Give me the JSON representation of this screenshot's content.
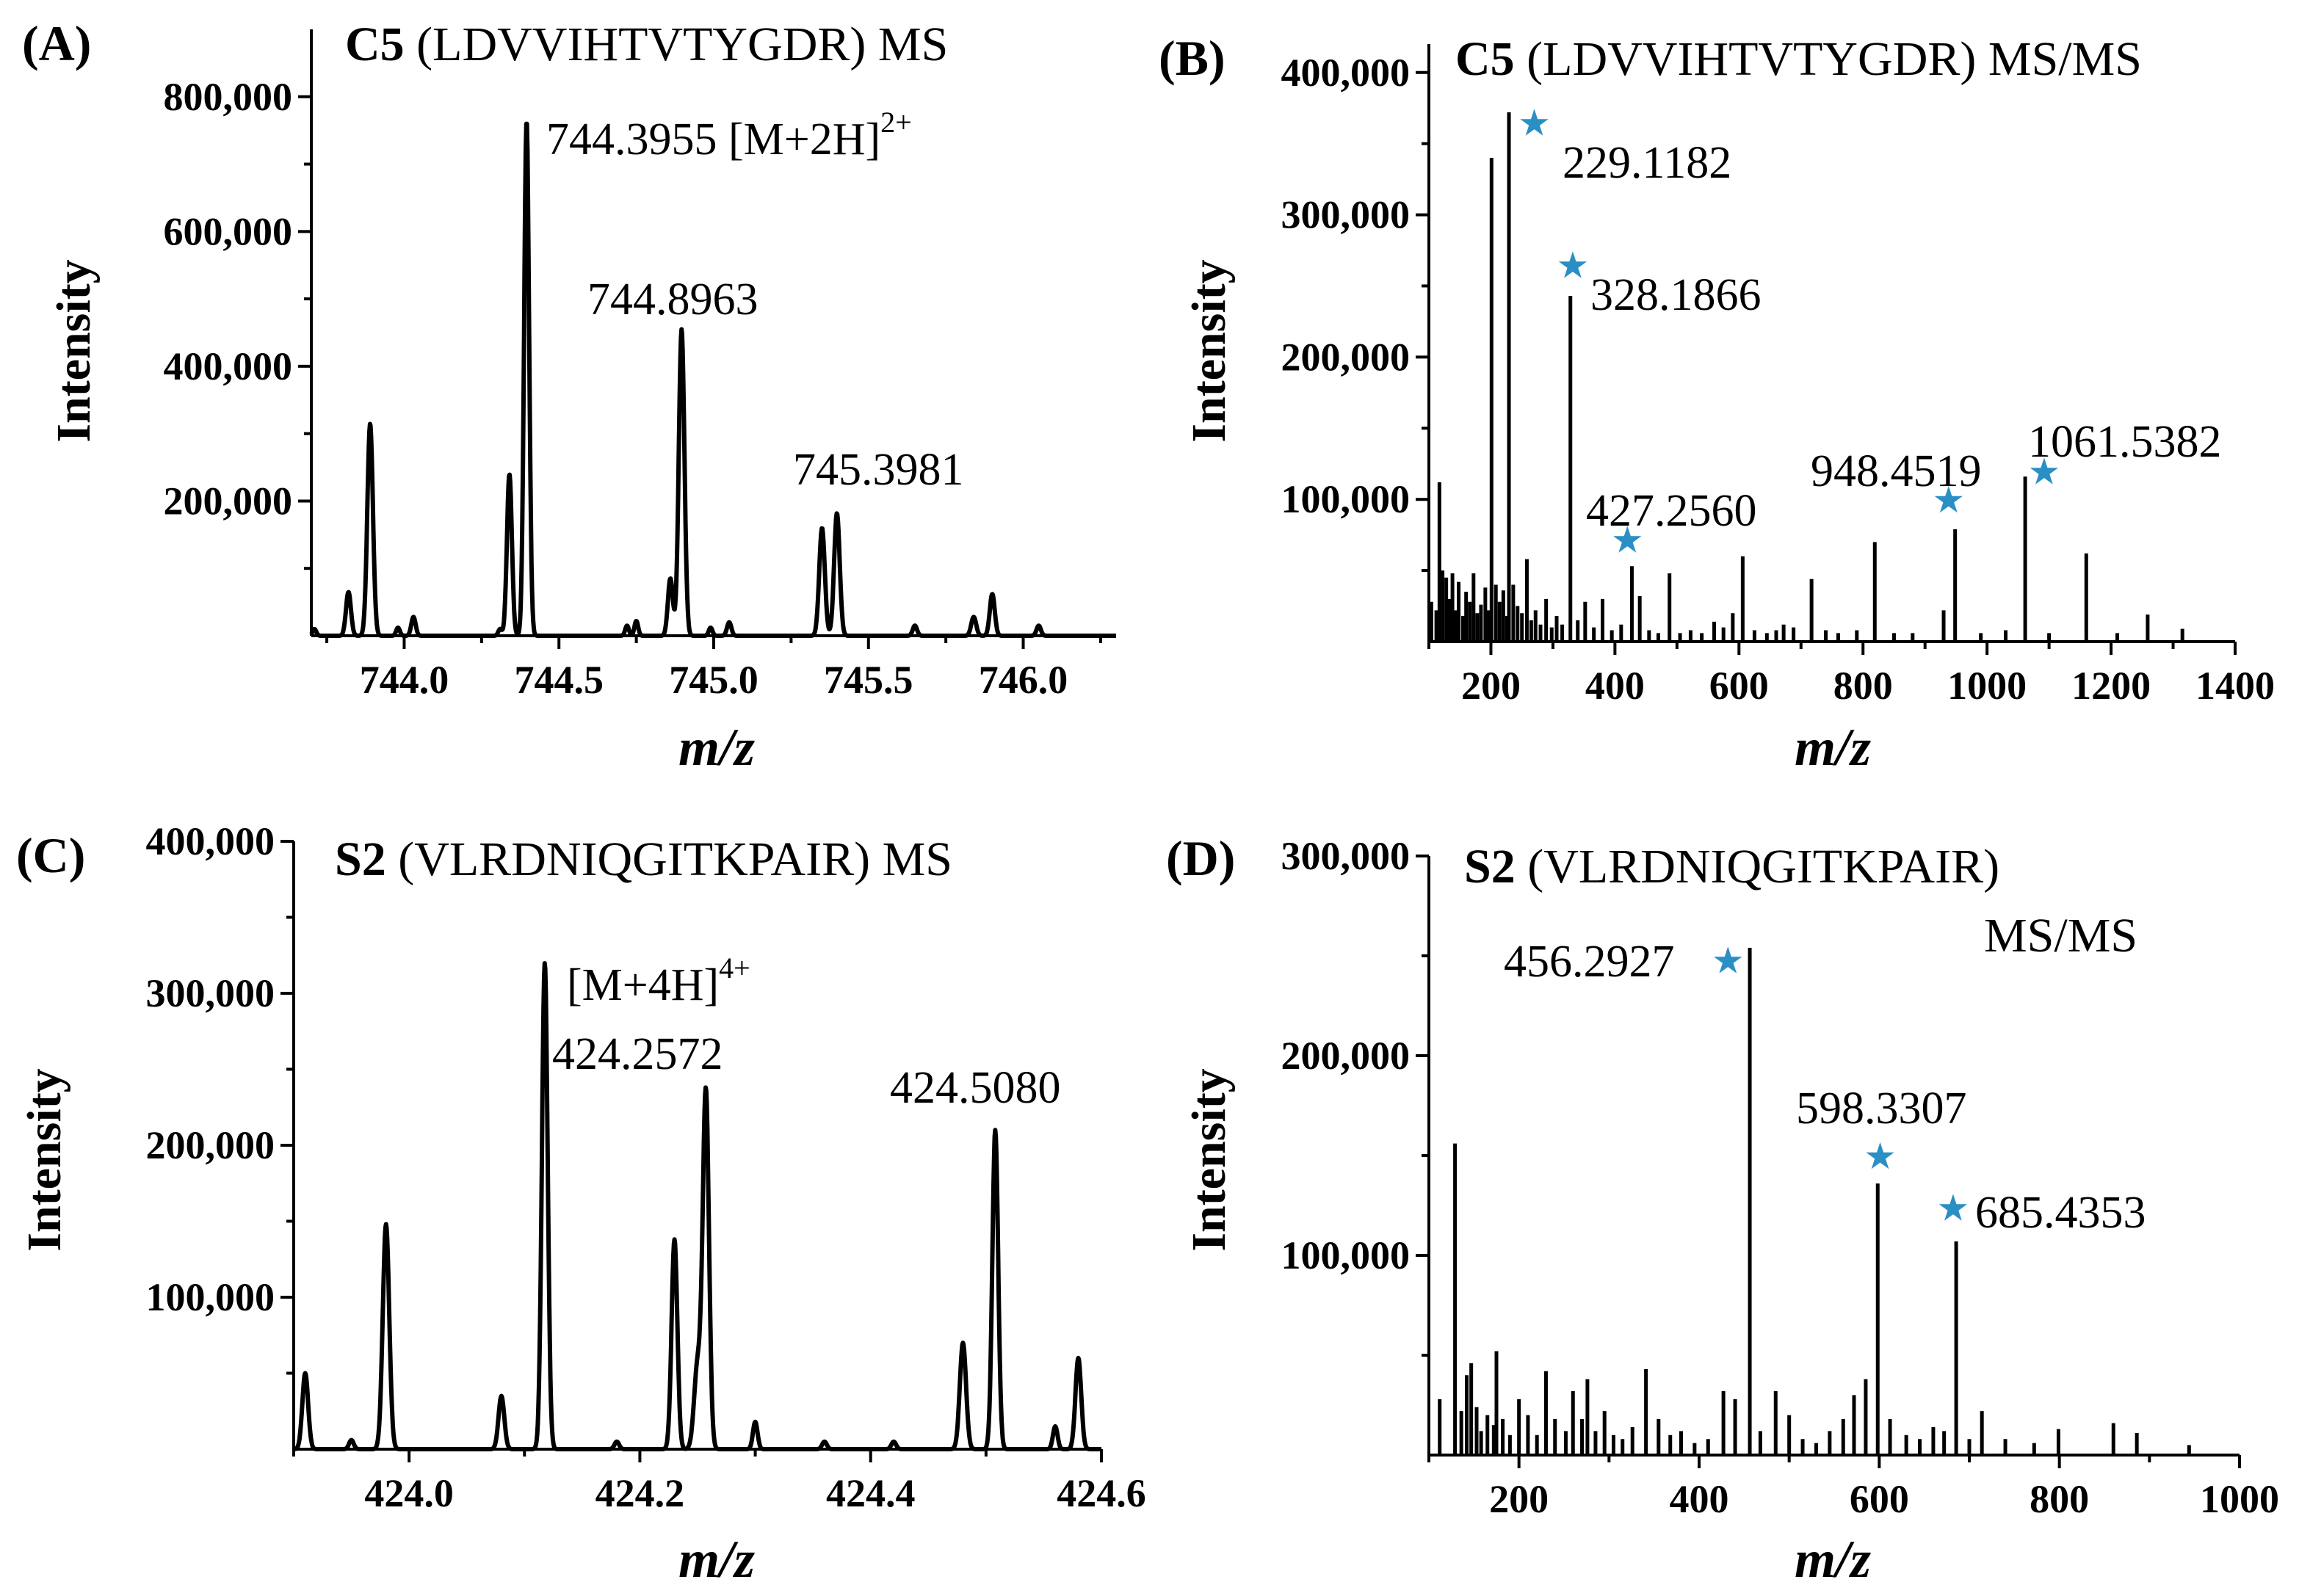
{
  "chart_data": [
    {
      "id": "A",
      "panel_label": "(A)",
      "type": "line",
      "title_bold": "C5",
      "title_rest": "(LDVVIHTVTYGDR) MS",
      "title_line2": "",
      "xlabel": "m/z",
      "ylabel": "Intensity",
      "xlim": [
        743.7,
        746.3
      ],
      "ylim": [
        0,
        900000
      ],
      "xticks": [
        744.0,
        744.5,
        745.0,
        745.5,
        746.0
      ],
      "xtick_labels": [
        "744.0",
        "744.5",
        "745.0",
        "745.5",
        "746.0"
      ],
      "xtick_minor": [
        743.75,
        744.25,
        744.75,
        745.25,
        745.75,
        746.25
      ],
      "yticks": [
        200000,
        400000,
        600000,
        800000
      ],
      "ytick_labels": [
        "200,000",
        "400,000",
        "600,000",
        "800,000"
      ],
      "peaks": [
        {
          "x": 743.71,
          "y": 10000,
          "w": 0.006
        },
        {
          "x": 743.82,
          "y": 65000,
          "w": 0.008
        },
        {
          "x": 743.89,
          "y": 315000,
          "w": 0.009
        },
        {
          "x": 743.98,
          "y": 12000,
          "w": 0.006
        },
        {
          "x": 744.03,
          "y": 28000,
          "w": 0.007
        },
        {
          "x": 744.31,
          "y": 10000,
          "w": 0.006
        },
        {
          "x": 744.34,
          "y": 240000,
          "w": 0.008
        },
        {
          "x": 744.3955,
          "y": 765000,
          "w": 0.008
        },
        {
          "x": 744.72,
          "y": 15000,
          "w": 0.006
        },
        {
          "x": 744.75,
          "y": 22000,
          "w": 0.006
        },
        {
          "x": 744.86,
          "y": 85000,
          "w": 0.008
        },
        {
          "x": 744.8963,
          "y": 455000,
          "w": 0.009
        },
        {
          "x": 744.99,
          "y": 12000,
          "w": 0.006
        },
        {
          "x": 745.05,
          "y": 20000,
          "w": 0.007
        },
        {
          "x": 745.35,
          "y": 160000,
          "w": 0.009
        },
        {
          "x": 745.3981,
          "y": 182000,
          "w": 0.009
        },
        {
          "x": 745.65,
          "y": 15000,
          "w": 0.007
        },
        {
          "x": 745.84,
          "y": 28000,
          "w": 0.008
        },
        {
          "x": 745.9,
          "y": 62000,
          "w": 0.008
        },
        {
          "x": 746.05,
          "y": 15000,
          "w": 0.007
        }
      ],
      "labels": [
        {
          "text": "744.3955 [M+2H]",
          "sup": "2+",
          "x": 744.3955,
          "y": 765000
        },
        {
          "text": "744.8963",
          "sup": "",
          "x": 744.8963,
          "y": 455000
        },
        {
          "text": "745.3981",
          "sup": "",
          "x": 745.3981,
          "y": 182000
        }
      ],
      "stars": []
    },
    {
      "id": "B",
      "panel_label": "(B)",
      "type": "bar",
      "title_bold": "C5",
      "title_rest": "(LDVVIHTVTYGDR) MS/MS",
      "title_line2": "",
      "xlabel": "m/z",
      "ylabel": "Intensity",
      "xlim": [
        100,
        1400
      ],
      "ylim": [
        0,
        420000
      ],
      "xticks": [
        200,
        400,
        600,
        800,
        1000,
        1200,
        1400
      ],
      "xtick_labels": [
        "200",
        "400",
        "600",
        "800",
        "1000",
        "1200",
        "1400"
      ],
      "xtick_minor": [
        100,
        300,
        500,
        700,
        900,
        1100,
        1300
      ],
      "yticks": [
        100000,
        200000,
        300000,
        400000
      ],
      "ytick_labels": [
        "100,000",
        "200,000",
        "300,000",
        "400,000"
      ],
      "peaks": [
        {
          "x": 104,
          "y": 28000
        },
        {
          "x": 112,
          "y": 22000
        },
        {
          "x": 117,
          "y": 112000
        },
        {
          "x": 122,
          "y": 50000
        },
        {
          "x": 128,
          "y": 45000
        },
        {
          "x": 133,
          "y": 30000
        },
        {
          "x": 138,
          "y": 48000
        },
        {
          "x": 143,
          "y": 22000
        },
        {
          "x": 148,
          "y": 42000
        },
        {
          "x": 155,
          "y": 18000
        },
        {
          "x": 160,
          "y": 35000
        },
        {
          "x": 166,
          "y": 28000
        },
        {
          "x": 172,
          "y": 48000
        },
        {
          "x": 178,
          "y": 20000
        },
        {
          "x": 184,
          "y": 26000
        },
        {
          "x": 191,
          "y": 38000
        },
        {
          "x": 196,
          "y": 22000
        },
        {
          "x": 201,
          "y": 340000
        },
        {
          "x": 208,
          "y": 40000
        },
        {
          "x": 214,
          "y": 28000
        },
        {
          "x": 220,
          "y": 36000
        },
        {
          "x": 226,
          "y": 18000
        },
        {
          "x": 229.1,
          "y": 372000
        },
        {
          "x": 236,
          "y": 40000
        },
        {
          "x": 243,
          "y": 25000
        },
        {
          "x": 250,
          "y": 20000
        },
        {
          "x": 258,
          "y": 58000
        },
        {
          "x": 265,
          "y": 15000
        },
        {
          "x": 272,
          "y": 22000
        },
        {
          "x": 280,
          "y": 12000
        },
        {
          "x": 289,
          "y": 30000
        },
        {
          "x": 298,
          "y": 10000
        },
        {
          "x": 306,
          "y": 18000
        },
        {
          "x": 315,
          "y": 12000
        },
        {
          "x": 328.2,
          "y": 243000
        },
        {
          "x": 340,
          "y": 15000
        },
        {
          "x": 352,
          "y": 28000
        },
        {
          "x": 366,
          "y": 10000
        },
        {
          "x": 380,
          "y": 30000
        },
        {
          "x": 395,
          "y": 8000
        },
        {
          "x": 410,
          "y": 12000
        },
        {
          "x": 427.3,
          "y": 53000
        },
        {
          "x": 440,
          "y": 32000
        },
        {
          "x": 455,
          "y": 8000
        },
        {
          "x": 470,
          "y": 6000
        },
        {
          "x": 488,
          "y": 48000
        },
        {
          "x": 505,
          "y": 6000
        },
        {
          "x": 522,
          "y": 8000
        },
        {
          "x": 540,
          "y": 6000
        },
        {
          "x": 560,
          "y": 14000
        },
        {
          "x": 575,
          "y": 10000
        },
        {
          "x": 590,
          "y": 20000
        },
        {
          "x": 606,
          "y": 60000
        },
        {
          "x": 625,
          "y": 8000
        },
        {
          "x": 645,
          "y": 6000
        },
        {
          "x": 660,
          "y": 8000
        },
        {
          "x": 672,
          "y": 12000
        },
        {
          "x": 688,
          "y": 10000
        },
        {
          "x": 717,
          "y": 44000
        },
        {
          "x": 740,
          "y": 8000
        },
        {
          "x": 760,
          "y": 6000
        },
        {
          "x": 790,
          "y": 8000
        },
        {
          "x": 819,
          "y": 70000
        },
        {
          "x": 850,
          "y": 6000
        },
        {
          "x": 880,
          "y": 6000
        },
        {
          "x": 930,
          "y": 22000
        },
        {
          "x": 948.5,
          "y": 79000
        },
        {
          "x": 990,
          "y": 6000
        },
        {
          "x": 1030,
          "y": 8000
        },
        {
          "x": 1061.5,
          "y": 116000
        },
        {
          "x": 1100,
          "y": 6000
        },
        {
          "x": 1160,
          "y": 62000
        },
        {
          "x": 1210,
          "y": 6000
        },
        {
          "x": 1259,
          "y": 19000
        },
        {
          "x": 1315,
          "y": 9000
        }
      ],
      "labels": [
        {
          "text": "229.1182",
          "sup": "",
          "x": 229.1,
          "y": 372000
        },
        {
          "text": "328.1866",
          "sup": "",
          "x": 328.2,
          "y": 243000
        },
        {
          "text": "427.2560",
          "sup": "",
          "x": 427.3,
          "y": 53000
        },
        {
          "text": "948.4519",
          "sup": "",
          "x": 948.5,
          "y": 79000
        },
        {
          "text": "1061.5382",
          "sup": "",
          "x": 1061.5,
          "y": 116000
        }
      ],
      "stars": [
        {
          "x": 270,
          "y": 365000
        },
        {
          "x": 332,
          "y": 265000
        },
        {
          "x": 420,
          "y": 72000
        },
        {
          "x": 938,
          "y": 100000
        },
        {
          "x": 1092,
          "y": 120000
        }
      ]
    },
    {
      "id": "C",
      "panel_label": "(C)",
      "type": "line",
      "title_bold": "S2",
      "title_rest": "(VLRDNIQGITKPAIR) MS",
      "title_line2": "",
      "xlabel": "m/z",
      "ylabel": "Intensity",
      "xlim": [
        423.9,
        424.6
      ],
      "ylim": [
        0,
        400000
      ],
      "xticks": [
        424.0,
        424.2,
        424.4,
        424.6
      ],
      "xtick_labels": [
        "424.0",
        "424.2",
        "424.4",
        "424.6"
      ],
      "xtick_minor": [
        423.9,
        424.1,
        424.3,
        424.5
      ],
      "yticks": [
        100000,
        200000,
        300000,
        400000
      ],
      "ytick_labels": [
        "100,000",
        "200,000",
        "300,000",
        "400,000"
      ],
      "peaks": [
        {
          "x": 423.91,
          "y": 50000,
          "w": 0.0025
        },
        {
          "x": 423.95,
          "y": 6000,
          "w": 0.002
        },
        {
          "x": 423.98,
          "y": 148000,
          "w": 0.0028
        },
        {
          "x": 424.08,
          "y": 35000,
          "w": 0.0025
        },
        {
          "x": 424.1176,
          "y": 320000,
          "w": 0.0025
        },
        {
          "x": 424.18,
          "y": 5000,
          "w": 0.002
        },
        {
          "x": 424.23,
          "y": 138000,
          "w": 0.0025
        },
        {
          "x": 424.25,
          "y": 55000,
          "w": 0.003
        },
        {
          "x": 424.2572,
          "y": 235000,
          "w": 0.0027
        },
        {
          "x": 424.3,
          "y": 18000,
          "w": 0.002
        },
        {
          "x": 424.36,
          "y": 5000,
          "w": 0.002
        },
        {
          "x": 424.42,
          "y": 5000,
          "w": 0.002
        },
        {
          "x": 424.48,
          "y": 70000,
          "w": 0.0027
        },
        {
          "x": 424.508,
          "y": 210000,
          "w": 0.0025
        },
        {
          "x": 424.56,
          "y": 15000,
          "w": 0.002
        },
        {
          "x": 424.58,
          "y": 60000,
          "w": 0.0025
        }
      ],
      "labels": [
        {
          "text": "[M+4H]",
          "sup": "4+",
          "x": 424.1176,
          "y": 320000
        },
        {
          "text": "424.2572",
          "sup": "",
          "x": 424.1176,
          "y": 320000
        },
        {
          "text": "424.5080",
          "sup": "",
          "x": 424.508,
          "y": 210000
        }
      ],
      "stars": []
    },
    {
      "id": "D",
      "panel_label": "(D)",
      "type": "bar",
      "title_bold": "S2",
      "title_rest": "(VLRDNIQGITKPAIR)",
      "title_line2": "MS/MS",
      "xlabel": "m/z",
      "ylabel": "Intensity",
      "xlim": [
        100,
        1000
      ],
      "ylim": [
        0,
        300000
      ],
      "xticks": [
        200,
        400,
        600,
        800,
        1000
      ],
      "xtick_labels": [
        "200",
        "400",
        "600",
        "800",
        "1000"
      ],
      "xtick_minor": [
        100,
        300,
        500,
        700,
        900
      ],
      "yticks": [
        100000,
        200000,
        300000
      ],
      "ytick_labels": [
        "100,000",
        "200,000",
        "300,000"
      ],
      "peaks": [
        {
          "x": 112,
          "y": 28000
        },
        {
          "x": 129,
          "y": 156000
        },
        {
          "x": 136,
          "y": 22000
        },
        {
          "x": 142,
          "y": 40000
        },
        {
          "x": 147,
          "y": 46000
        },
        {
          "x": 153,
          "y": 24000
        },
        {
          "x": 158,
          "y": 12000
        },
        {
          "x": 165,
          "y": 20000
        },
        {
          "x": 172,
          "y": 15000
        },
        {
          "x": 175,
          "y": 52000
        },
        {
          "x": 182,
          "y": 18000
        },
        {
          "x": 190,
          "y": 10000
        },
        {
          "x": 200,
          "y": 28000
        },
        {
          "x": 210,
          "y": 20000
        },
        {
          "x": 220,
          "y": 10000
        },
        {
          "x": 230,
          "y": 42000
        },
        {
          "x": 240,
          "y": 18000
        },
        {
          "x": 252,
          "y": 12000
        },
        {
          "x": 260,
          "y": 32000
        },
        {
          "x": 270,
          "y": 18000
        },
        {
          "x": 276,
          "y": 38000
        },
        {
          "x": 285,
          "y": 12000
        },
        {
          "x": 295,
          "y": 22000
        },
        {
          "x": 305,
          "y": 10000
        },
        {
          "x": 315,
          "y": 8000
        },
        {
          "x": 326,
          "y": 14000
        },
        {
          "x": 341,
          "y": 43000
        },
        {
          "x": 355,
          "y": 18000
        },
        {
          "x": 368,
          "y": 10000
        },
        {
          "x": 380,
          "y": 12000
        },
        {
          "x": 395,
          "y": 6000
        },
        {
          "x": 410,
          "y": 8000
        },
        {
          "x": 427,
          "y": 32000
        },
        {
          "x": 440,
          "y": 28000
        },
        {
          "x": 456.3,
          "y": 254000
        },
        {
          "x": 468,
          "y": 12000
        },
        {
          "x": 485,
          "y": 32000
        },
        {
          "x": 500,
          "y": 20000
        },
        {
          "x": 515,
          "y": 8000
        },
        {
          "x": 530,
          "y": 6000
        },
        {
          "x": 545,
          "y": 12000
        },
        {
          "x": 560,
          "y": 18000
        },
        {
          "x": 572,
          "y": 30000
        },
        {
          "x": 585,
          "y": 38000
        },
        {
          "x": 598.3,
          "y": 136000
        },
        {
          "x": 612,
          "y": 18000
        },
        {
          "x": 630,
          "y": 10000
        },
        {
          "x": 645,
          "y": 8000
        },
        {
          "x": 660,
          "y": 14000
        },
        {
          "x": 672,
          "y": 12000
        },
        {
          "x": 685.4,
          "y": 107000
        },
        {
          "x": 700,
          "y": 8000
        },
        {
          "x": 714,
          "y": 22000
        },
        {
          "x": 740,
          "y": 8000
        },
        {
          "x": 772,
          "y": 6000
        },
        {
          "x": 799,
          "y": 13000
        },
        {
          "x": 860,
          "y": 16000
        },
        {
          "x": 886,
          "y": 11000
        },
        {
          "x": 944,
          "y": 5000
        }
      ],
      "labels": [
        {
          "text": "456.2927",
          "sup": "",
          "x": 456.3,
          "y": 254000
        },
        {
          "text": "598.3307",
          "sup": "",
          "x": 598.3,
          "y": 136000
        },
        {
          "text": "685.4353",
          "sup": "",
          "x": 685.4,
          "y": 107000
        }
      ],
      "stars": [
        {
          "x": 432,
          "y": 248000
        },
        {
          "x": 601,
          "y": 150000
        },
        {
          "x": 682,
          "y": 124000
        }
      ]
    }
  ]
}
